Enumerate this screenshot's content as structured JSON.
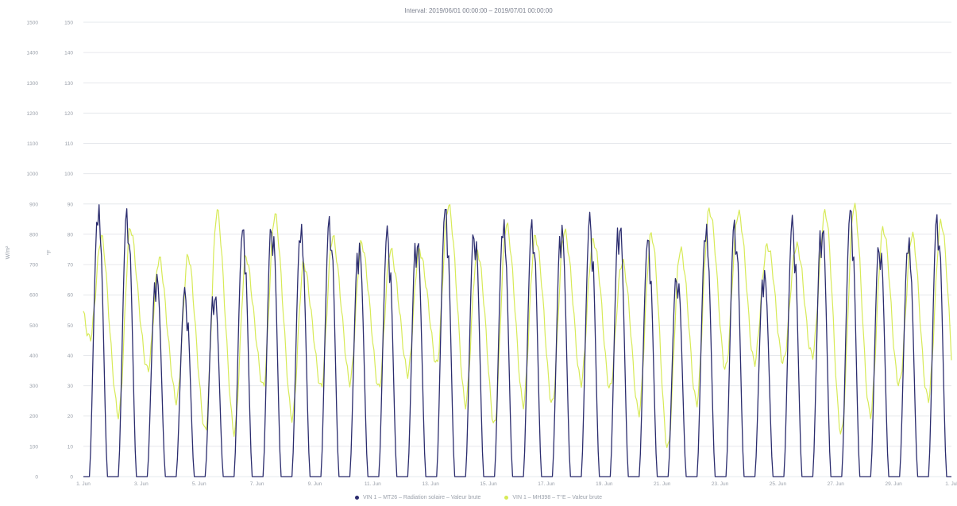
{
  "chart_data": {
    "type": "line",
    "title": "Interval: 2019/06/01 00:00:00 – 2019/07/01 00:00:00",
    "left_axis": {
      "label": "W/m²",
      "ticks": [
        "0",
        "100",
        "200",
        "300",
        "400",
        "500",
        "600",
        "700",
        "800",
        "900",
        "1000",
        "1100",
        "1200",
        "1300",
        "1400",
        "1500"
      ],
      "range": [
        0,
        1500
      ]
    },
    "right_axis": {
      "label": "°F",
      "ticks": [
        "0",
        "10",
        "20",
        "30",
        "40",
        "50",
        "60",
        "70",
        "80",
        "90",
        "100",
        "110",
        "120",
        "130",
        "140",
        "150"
      ],
      "range": [
        0,
        150
      ]
    },
    "x_axis": {
      "ticks": [
        "1. Jun",
        "3. Jun",
        "5. Jun",
        "7. Jun",
        "9. Jun",
        "11. Jun",
        "13. Jun",
        "15. Jun",
        "17. Jun",
        "19. Jun",
        "21. Jun",
        "23. Jun",
        "25. Jun",
        "27. Jun",
        "29. Jun",
        "1. Jul"
      ],
      "range_days": [
        1,
        31
      ]
    },
    "series": [
      {
        "name": "VIN 1 – MT26 – Radiation solaire – Valeur brute",
        "color": "#2b2c6e",
        "axis": "left",
        "daily_peaks": [
          905,
          910,
          690,
          630,
          640,
          835,
          880,
          840,
          885,
          795,
          835,
          830,
          905,
          860,
          855,
          875,
          855,
          880,
          885,
          800,
          705,
          840,
          875,
          700,
          870,
          875,
          900,
          815,
          795,
          895
        ]
      },
      {
        "name": "VIN 1 – MH398 – T°E – Valeur brute",
        "color": "#d7ea57",
        "axis": "right",
        "daily_max": [
          78,
          81,
          71,
          72,
          87,
          72,
          86,
          70,
          79,
          77,
          75,
          75,
          90,
          75,
          84,
          80,
          82,
          79,
          72,
          81,
          76,
          89,
          88,
          77,
          77,
          88,
          90,
          82,
          80,
          84
        ],
        "daily_min": [
          45,
          20,
          35,
          25,
          15,
          15,
          30,
          20,
          30,
          32,
          30,
          35,
          38,
          25,
          18,
          25,
          25,
          32,
          30,
          22,
          10,
          25,
          36,
          38,
          38,
          40,
          14,
          20,
          30,
          25
        ]
      }
    ],
    "grid": true,
    "legend_position": "bottom"
  }
}
